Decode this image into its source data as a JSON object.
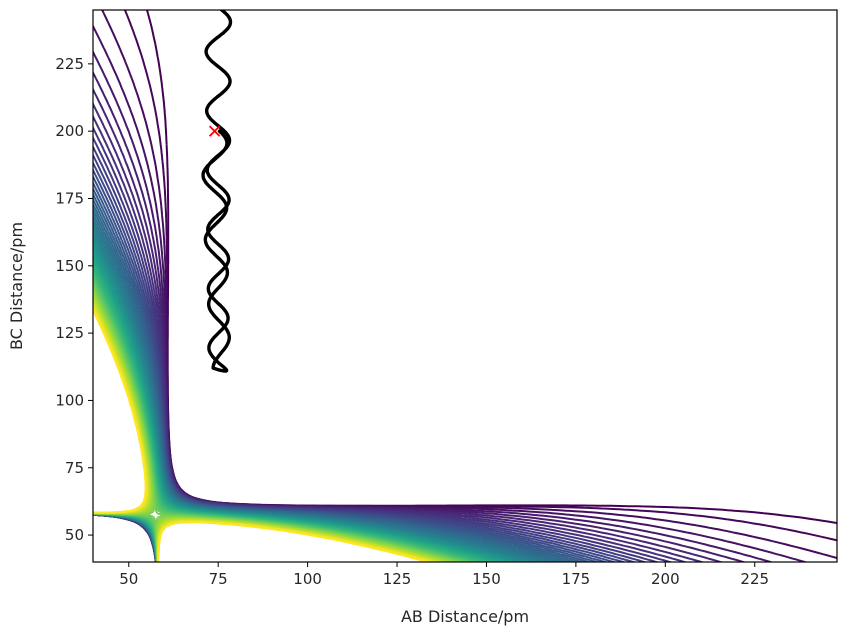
{
  "chart_data": {
    "type": "contour",
    "xlabel": "AB Distance/pm",
    "ylabel": "BC Distance/pm",
    "xlim": [
      40,
      248
    ],
    "ylim": [
      40,
      245
    ],
    "x_ticks": [
      50,
      75,
      100,
      125,
      150,
      175,
      200,
      225
    ],
    "y_ticks": [
      50,
      75,
      100,
      125,
      150,
      175,
      200,
      225
    ],
    "x_tick_labels": [
      "50",
      "75",
      "100",
      "125",
      "150",
      "175",
      "200",
      "225"
    ],
    "y_tick_labels": [
      "50",
      "75",
      "100",
      "125",
      "150",
      "175",
      "200",
      "225"
    ],
    "colormap": "viridis",
    "colormap_stops": [
      "#440154",
      "#482878",
      "#3e4989",
      "#31688e",
      "#26828e",
      "#1f9e89",
      "#35b779",
      "#6ece58",
      "#b5de2b",
      "#fde725"
    ],
    "grid": false,
    "surface": {
      "well_x_min": 74,
      "well_y_min": 74,
      "saddle": [
        90,
        90
      ],
      "contour_levels": 60
    },
    "start_point": {
      "x": 74,
      "y": 200,
      "marker": "x",
      "color": "#ff0000"
    },
    "trajectory": {
      "color": "#000000",
      "start": [
        74,
        200
      ],
      "end": [
        75,
        245
      ],
      "turn": [
        80,
        112
      ],
      "osc_amplitude": 3.5,
      "osc_period_down": 24,
      "osc_period_up": 22
    }
  }
}
